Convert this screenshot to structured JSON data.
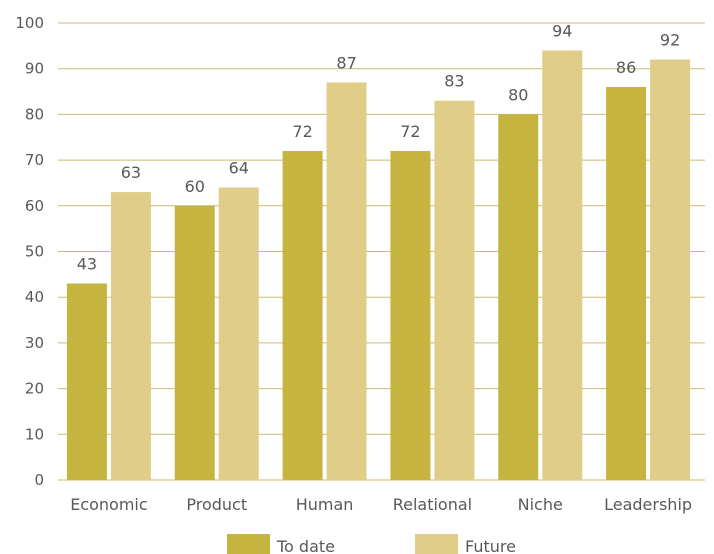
{
  "chart_data": {
    "type": "bar",
    "categories": [
      "Economic",
      "Product",
      "Human",
      "Relational",
      "Niche",
      "Leadership"
    ],
    "series": [
      {
        "name": "To date",
        "values": [
          43,
          60,
          72,
          72,
          80,
          86
        ],
        "color": "#c6b440"
      },
      {
        "name": "Future",
        "values": [
          63,
          64,
          87,
          83,
          94,
          92
        ],
        "color": "#e0cd88"
      }
    ],
    "ylim": [
      0,
      100
    ],
    "yticks": [
      0,
      10,
      20,
      30,
      40,
      50,
      60,
      70,
      80,
      90,
      100
    ],
    "grid": true,
    "grid_color": "#c8bc72",
    "legend_position": "bottom",
    "title": "",
    "xlabel": "",
    "ylabel": ""
  }
}
